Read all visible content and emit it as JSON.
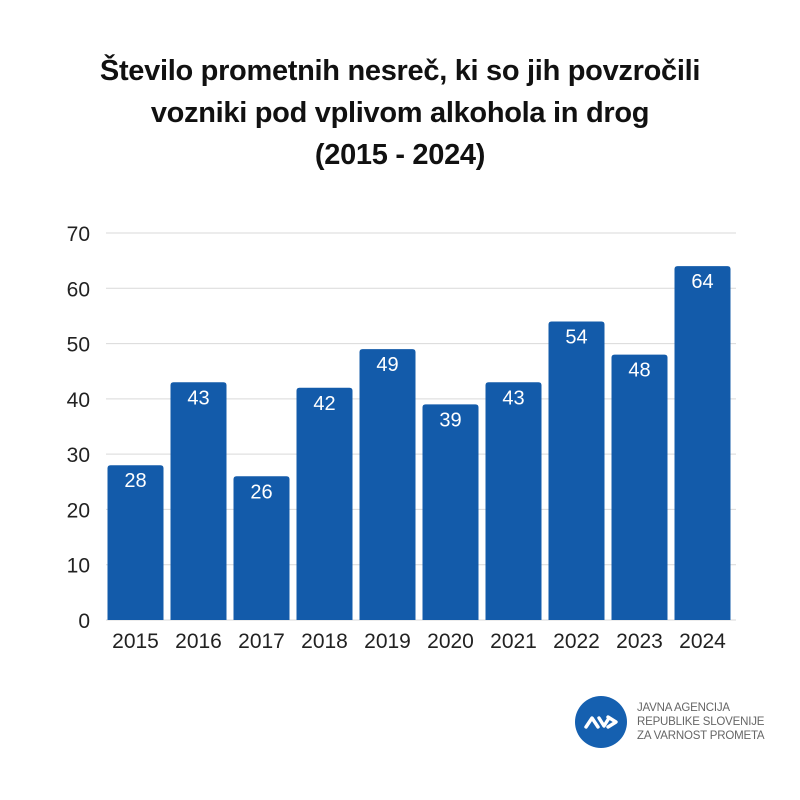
{
  "chart_data": {
    "type": "bar",
    "title": [
      "Število prometnih nesreč, ki so jih povzročili",
      "vozniki pod vplivom alkohola in drog",
      "(2015 - 2024)"
    ],
    "categories": [
      "2015",
      "2016",
      "2017",
      "2018",
      "2019",
      "2020",
      "2021",
      "2022",
      "2023",
      "2024"
    ],
    "values": [
      28,
      43,
      26,
      42,
      49,
      39,
      43,
      54,
      48,
      64
    ],
    "data_labels": [
      "28",
      "43",
      "26",
      "42",
      "49",
      "39",
      "43",
      "54",
      "48",
      "64"
    ],
    "xlabel": "",
    "ylabel": "",
    "ylim": [
      0,
      70
    ],
    "yticks": [
      0,
      10,
      20,
      30,
      40,
      50,
      60,
      70
    ],
    "grid": true,
    "legend": "none",
    "bar_color": "#135baa",
    "label_color": "#ffffff"
  },
  "logo": {
    "glyph": "AV>",
    "lines": [
      "JAVNA AGENCIJA",
      "REPUBLIKE SLOVENIJE",
      "ZA VARNOST PROMETA"
    ],
    "color": "#1560b0"
  }
}
